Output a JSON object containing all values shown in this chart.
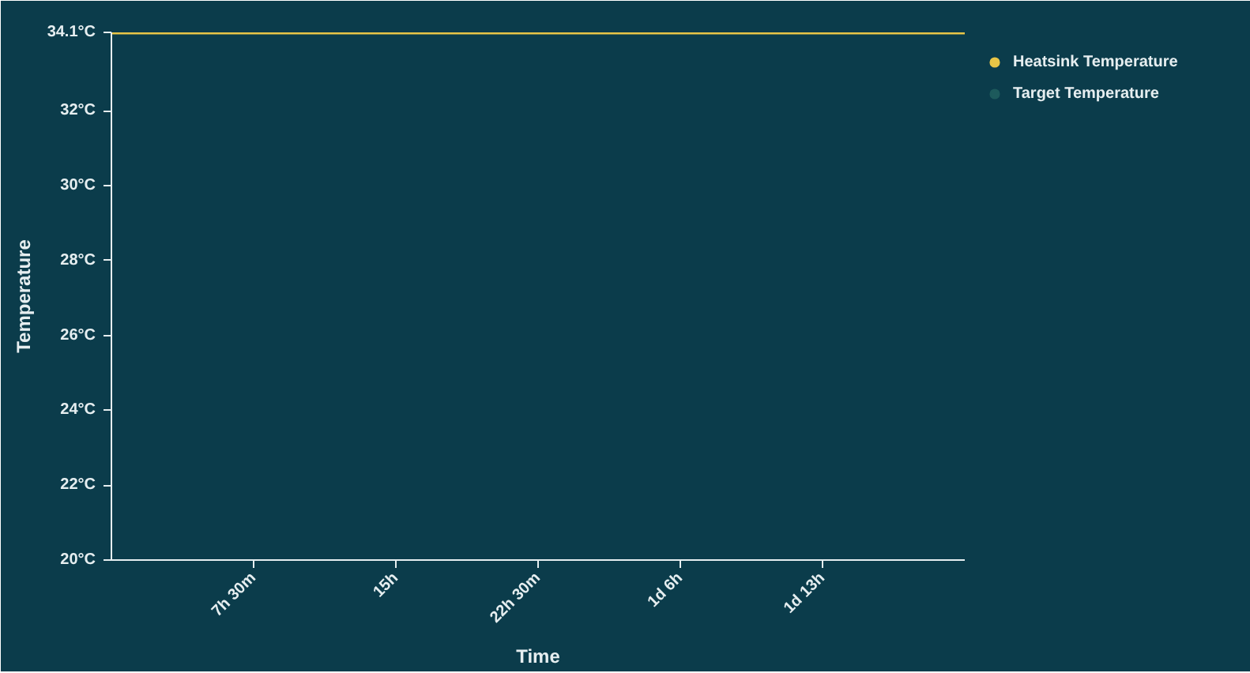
{
  "chart_data": {
    "type": "line",
    "xlabel": "Time",
    "ylabel": "Temperature",
    "categories": [
      null,
      "7h 30m",
      "15h",
      "22h 30m",
      "1d 6h",
      "1d 13h",
      null
    ],
    "series": [
      {
        "name": "Heatsink Temperature",
        "color": "#e8c547",
        "values": [
          34.1,
          34.1,
          34.1,
          34.1,
          34.1,
          34.1,
          34.1
        ]
      },
      {
        "name": "Target Temperature",
        "color": "#1d5a5c",
        "values": [
          null,
          null,
          null,
          null,
          null,
          null,
          null
        ]
      }
    ],
    "ylim": [
      20,
      34.1
    ],
    "yticks": [
      {
        "value": 20,
        "label": "20°C"
      },
      {
        "value": 22,
        "label": "22°C"
      },
      {
        "value": 24,
        "label": "24°C"
      },
      {
        "value": 26,
        "label": "26°C"
      },
      {
        "value": 28,
        "label": "28°C"
      },
      {
        "value": 30,
        "label": "30°C"
      },
      {
        "value": 32,
        "label": "32°C"
      },
      {
        "value": 34.1,
        "label": "34.1°C"
      }
    ],
    "grid": false,
    "legend": "top right"
  }
}
